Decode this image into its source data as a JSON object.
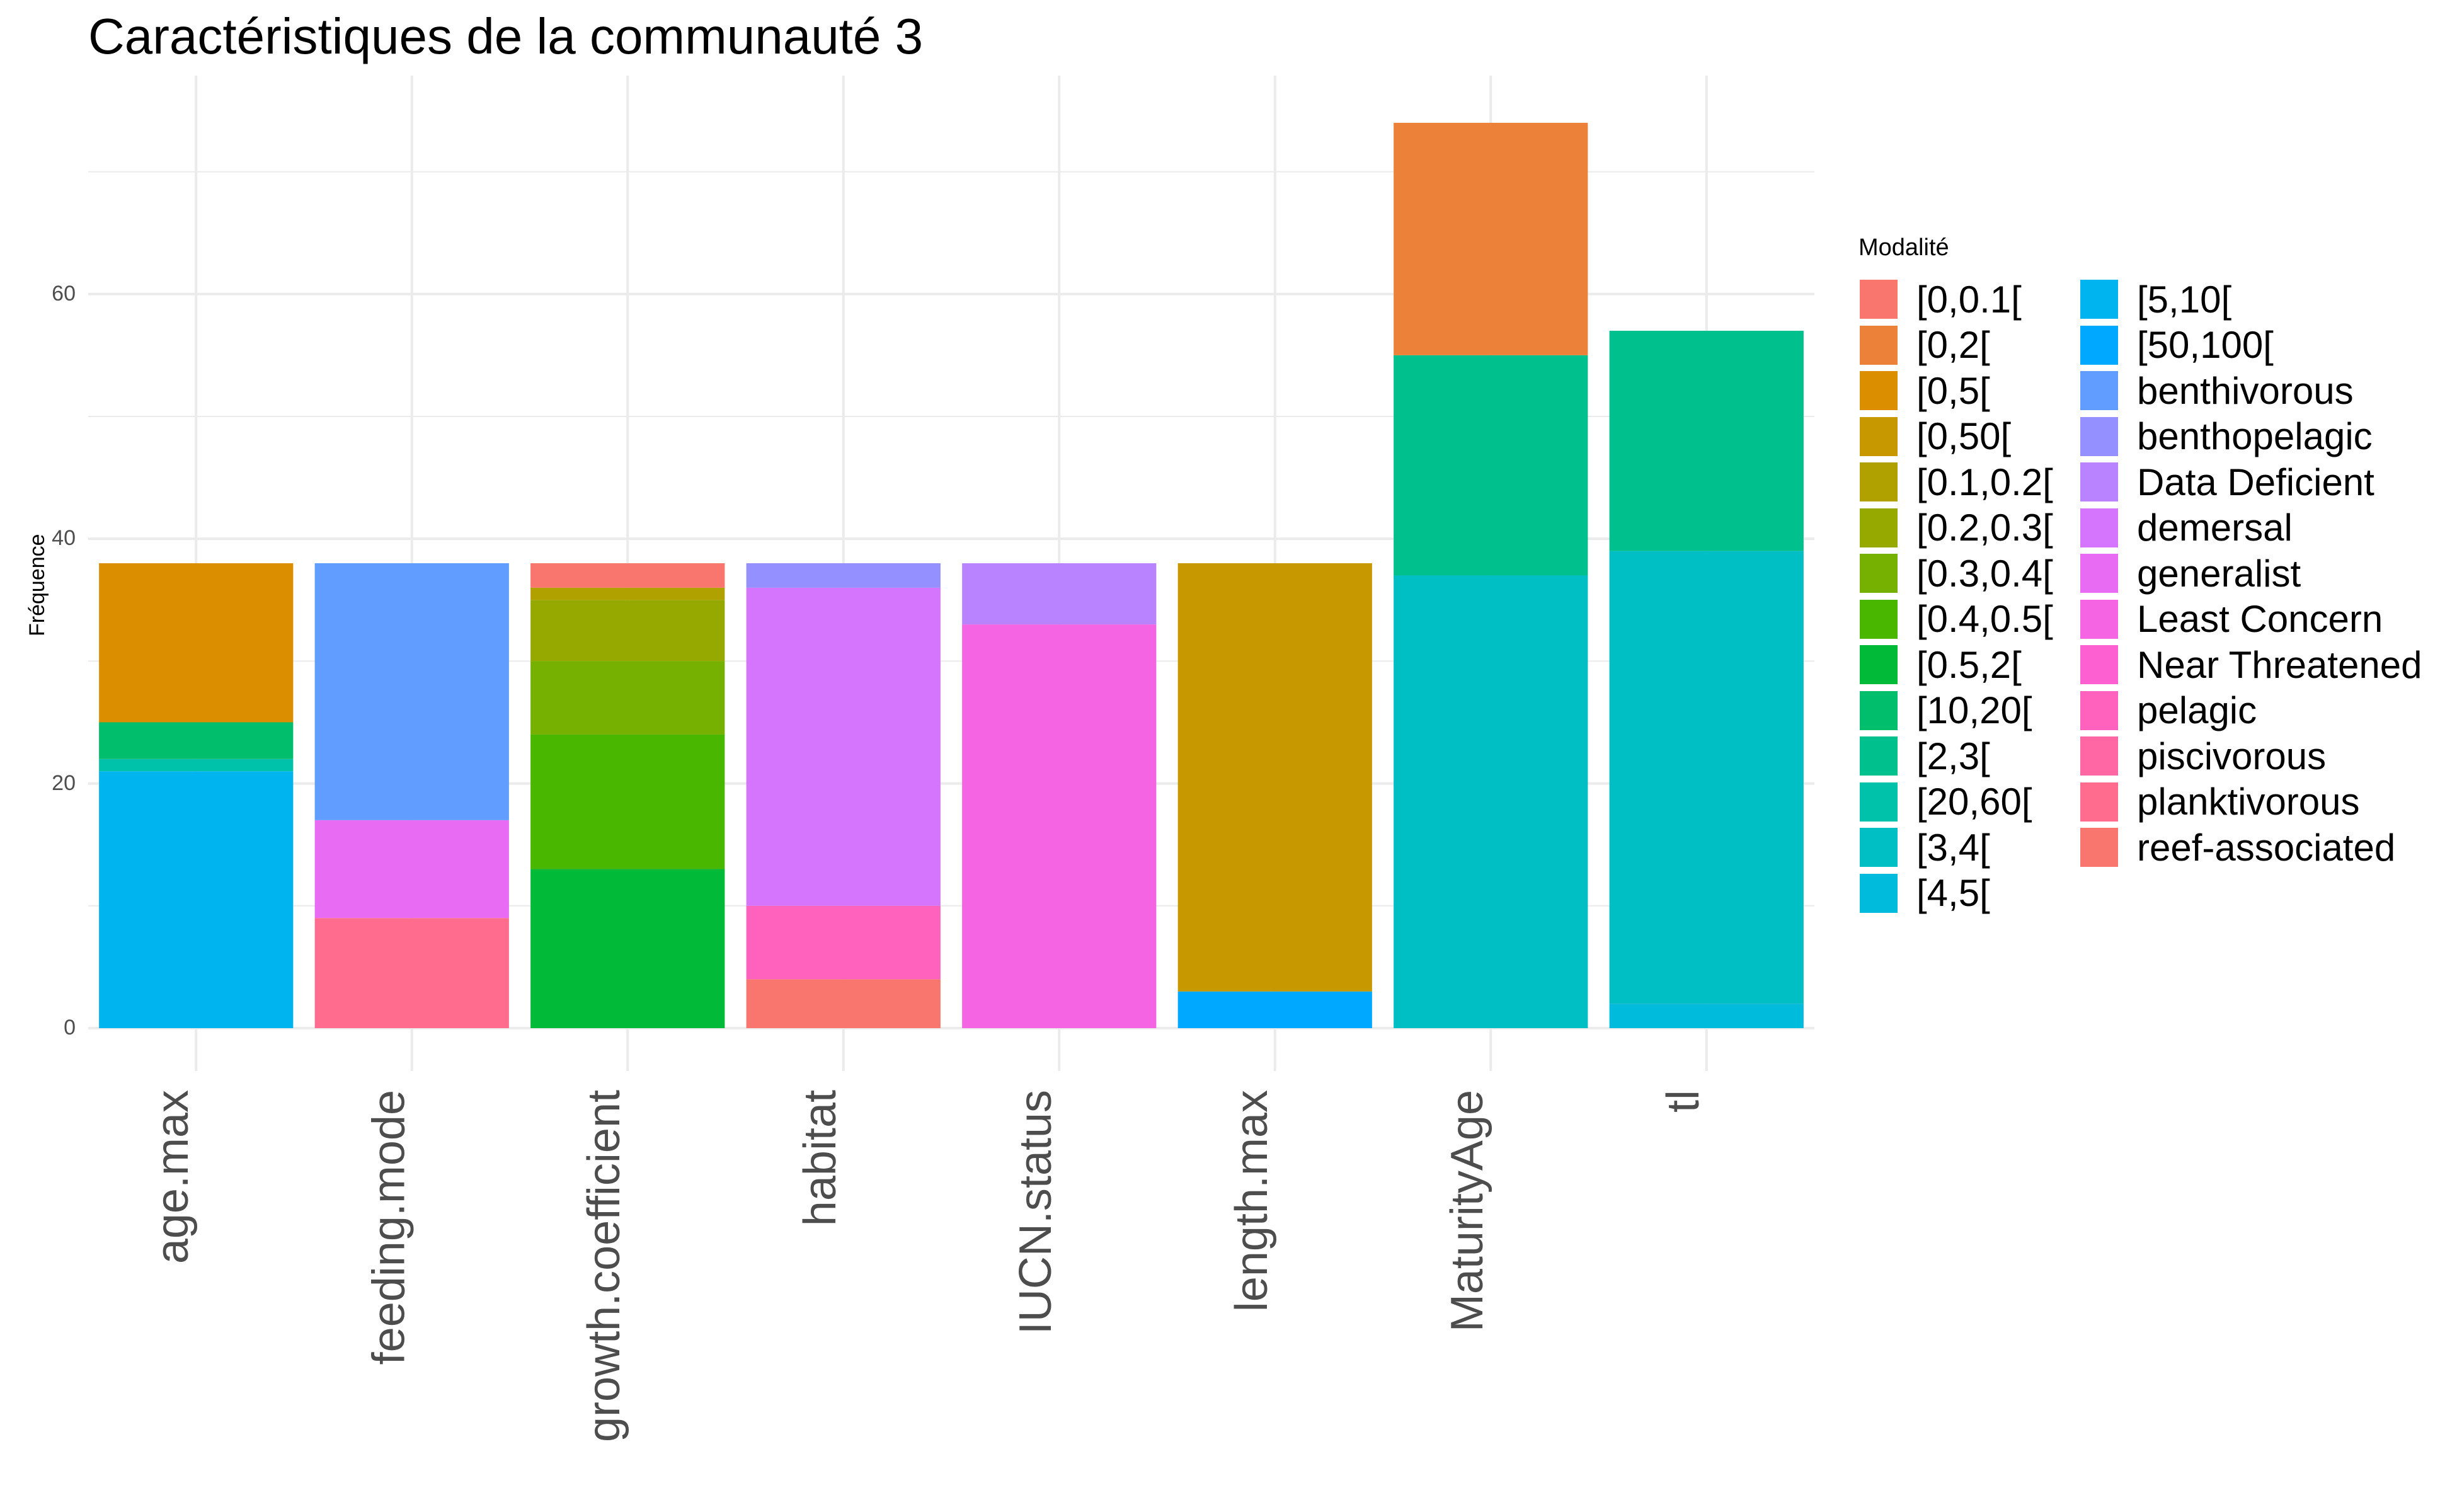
{
  "chart_data": {
    "type": "bar",
    "stacked": true,
    "title": "Caractéristiques de la communauté 3",
    "ylabel": "Fréquence",
    "xlabel": "",
    "ylim": [
      0,
      78
    ],
    "yticks": [
      0,
      20,
      40,
      60
    ],
    "grid": true,
    "legend_title": "Modalité",
    "legend_position": "right",
    "categories": [
      "age.max",
      "feeding.mode",
      "growth.coefficient",
      "habitat",
      "IUCN.status",
      "length.max",
      "MaturityAge",
      "tl"
    ],
    "levels": [
      {
        "name": "[0,0.1[",
        "color": "#F8766D"
      },
      {
        "name": "[0,2[",
        "color": "#EC8239"
      },
      {
        "name": "[0,5[",
        "color": "#DB8E00"
      },
      {
        "name": "[0,50[",
        "color": "#C79800"
      },
      {
        "name": "[0.1,0.2[",
        "color": "#B0A100"
      },
      {
        "name": "[0.2,0.3[",
        "color": "#96A900"
      },
      {
        "name": "[0.3,0.4[",
        "color": "#76B000"
      },
      {
        "name": "[0.4,0.5[",
        "color": "#49B600"
      },
      {
        "name": "[0.5,2[",
        "color": "#00BA38"
      },
      {
        "name": "[10,20[",
        "color": "#00BE6C"
      },
      {
        "name": "[2,3[",
        "color": "#00C08D"
      },
      {
        "name": "[20,60[",
        "color": "#00C1A9"
      },
      {
        "name": "[3,4[",
        "color": "#00BFC4"
      },
      {
        "name": "[4,5[",
        "color": "#00BBDB"
      },
      {
        "name": "[5,10[",
        "color": "#00B4EF"
      },
      {
        "name": "[50,100[",
        "color": "#00A9FF"
      },
      {
        "name": "benthivorous",
        "color": "#619CFF"
      },
      {
        "name": "benthopelagic",
        "color": "#9590FF"
      },
      {
        "name": "Data Deficient",
        "color": "#B983FF"
      },
      {
        "name": "demersal",
        "color": "#D575FE"
      },
      {
        "name": "generalist",
        "color": "#E76BF3"
      },
      {
        "name": "Least Concern",
        "color": "#F564E3"
      },
      {
        "name": "Near Threatened",
        "color": "#FD61D1"
      },
      {
        "name": "pelagic",
        "color": "#FF62BC"
      },
      {
        "name": "piscivorous",
        "color": "#FF67A4"
      },
      {
        "name": "planktivorous",
        "color": "#FF6C8E"
      },
      {
        "name": "reef-associated",
        "color": "#F8766D"
      }
    ],
    "stacks": [
      {
        "category": "age.max",
        "segments": [
          {
            "level": "[5,10[",
            "value": 21
          },
          {
            "level": "[20,60[",
            "value": 1
          },
          {
            "level": "[10,20[",
            "value": 3
          },
          {
            "level": "[0,5[",
            "value": 13
          }
        ]
      },
      {
        "category": "feeding.mode",
        "segments": [
          {
            "level": "planktivorous",
            "value": 9
          },
          {
            "level": "generalist",
            "value": 8
          },
          {
            "level": "benthivorous",
            "value": 21
          }
        ]
      },
      {
        "category": "growth.coefficient",
        "segments": [
          {
            "level": "[0.5,2[",
            "value": 13
          },
          {
            "level": "[0.4,0.5[",
            "value": 11
          },
          {
            "level": "[0.3,0.4[",
            "value": 6
          },
          {
            "level": "[0.2,0.3[",
            "value": 5
          },
          {
            "level": "[0.1,0.2[",
            "value": 1
          },
          {
            "level": "[0,0.1[",
            "value": 2
          }
        ]
      },
      {
        "category": "habitat",
        "segments": [
          {
            "level": "reef-associated",
            "value": 4
          },
          {
            "level": "pelagic",
            "value": 6
          },
          {
            "level": "demersal",
            "value": 26
          },
          {
            "level": "benthopelagic",
            "value": 2
          }
        ]
      },
      {
        "category": "IUCN.status",
        "segments": [
          {
            "level": "Least Concern",
            "value": 33
          },
          {
            "level": "Data Deficient",
            "value": 5
          }
        ]
      },
      {
        "category": "length.max",
        "segments": [
          {
            "level": "[50,100[",
            "value": 3
          },
          {
            "level": "[0,50[",
            "value": 35
          }
        ]
      },
      {
        "category": "MaturityAge",
        "segments": [
          {
            "level": "[3,4[",
            "value": 37
          },
          {
            "level": "[2,3[",
            "value": 18
          },
          {
            "level": "[0,2[",
            "value": 19
          }
        ]
      },
      {
        "category": "tl",
        "segments": [
          {
            "level": "[4,5[",
            "value": 2
          },
          {
            "level": "[3,4[",
            "value": 37
          },
          {
            "level": "[2,3[",
            "value": 18
          }
        ]
      }
    ]
  }
}
